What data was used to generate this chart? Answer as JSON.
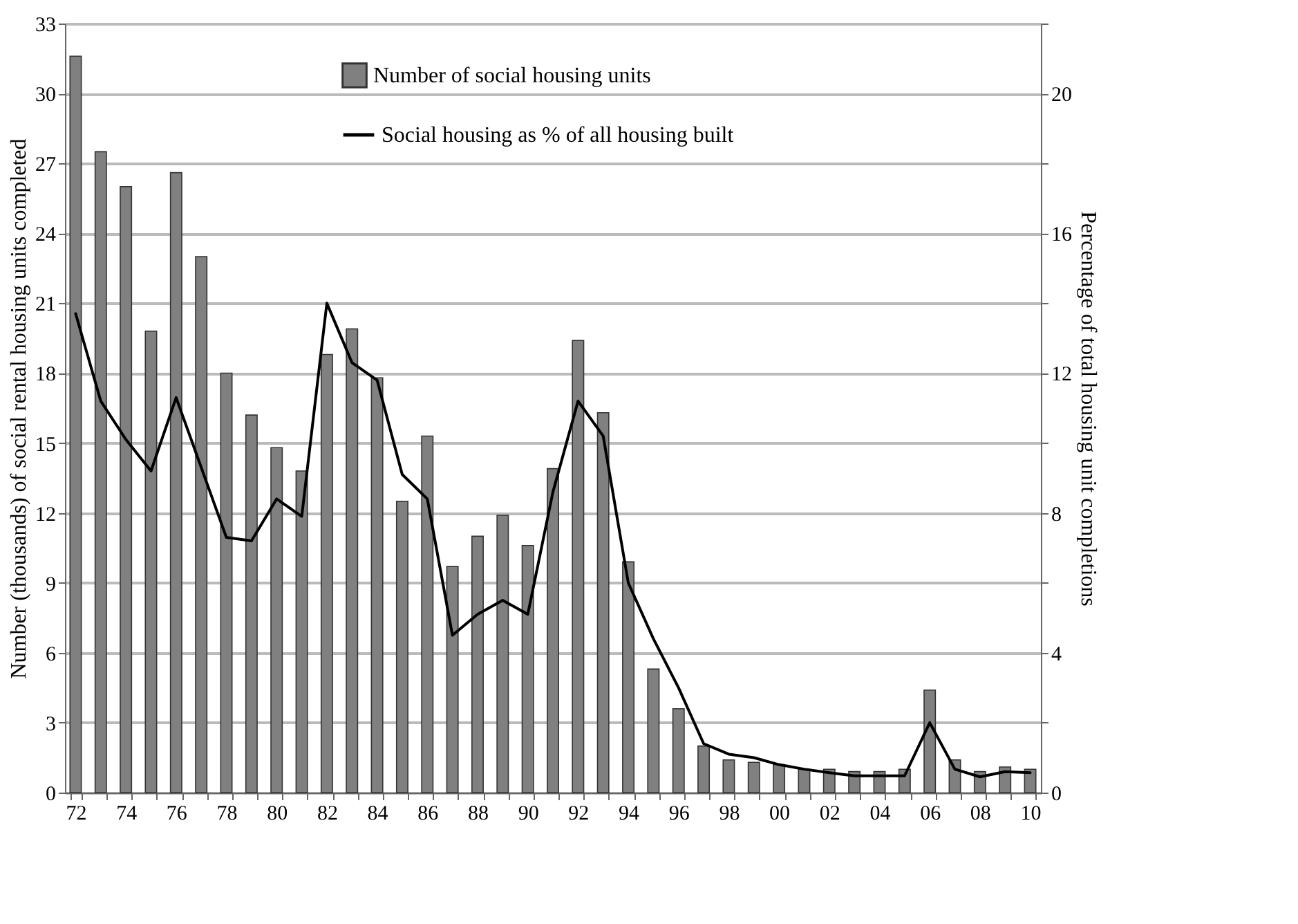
{
  "chart_data": {
    "type": "bar",
    "ylabel": "Number (thousands) of social rental housing units completed",
    "y2label": "Percentage of total housing unit completions",
    "categories": [
      "72",
      null,
      "74",
      null,
      "76",
      null,
      "78",
      null,
      "80",
      null,
      "82",
      null,
      "84",
      null,
      "86",
      null,
      "88",
      null,
      "90",
      null,
      "92",
      null,
      "94",
      null,
      "96",
      null,
      "98",
      null,
      "00",
      null,
      "02",
      null,
      "04",
      null,
      "06",
      null,
      "08",
      null,
      "10"
    ],
    "series": [
      {
        "name": "Number of social housing units",
        "color": "#808080",
        "values": [
          31.6,
          27.5,
          26.0,
          19.8,
          26.6,
          23.0,
          18.0,
          16.2,
          14.8,
          13.8,
          18.8,
          19.9,
          17.8,
          12.5,
          15.3,
          9.7,
          11.0,
          11.9,
          10.6,
          13.9,
          19.4,
          16.3,
          9.9,
          5.3,
          3.6,
          2.0,
          1.4,
          1.3,
          1.2,
          1.0,
          1.0,
          0.9,
          0.9,
          1.0,
          4.4,
          1.4,
          0.9,
          1.1,
          1.0
        ]
      },
      {
        "name": "Social housing as % of all housing built",
        "type": "line",
        "axis": "y2",
        "color": "#000000",
        "values": [
          13.7,
          11.2,
          10.1,
          9.2,
          11.3,
          9.3,
          7.3,
          7.2,
          8.4,
          7.9,
          14.0,
          12.3,
          11.8,
          9.1,
          8.4,
          4.5,
          5.1,
          5.5,
          5.1,
          8.6,
          11.2,
          10.2,
          6.0,
          4.4,
          3.0,
          1.4,
          1.1,
          1.0,
          0.8,
          0.67,
          0.57,
          0.48,
          0.48,
          0.48,
          2.0,
          0.67,
          0.45,
          0.6,
          0.57
        ]
      }
    ],
    "ylim": [
      0,
      33
    ],
    "yticks": [
      0,
      3,
      6,
      9,
      12,
      15,
      18,
      21,
      24,
      27,
      30,
      33
    ],
    "y2lim": [
      0,
      22
    ],
    "y2ticks": [
      0,
      {
        "value": 2,
        "label": null
      },
      4,
      {
        "value": 6,
        "label": null
      },
      8,
      {
        "value": 10,
        "label": null
      },
      12,
      {
        "value": 14,
        "label": null
      },
      16,
      {
        "value": 18,
        "label": null
      },
      20,
      {
        "value": 22,
        "label": null
      }
    ],
    "grid": "y",
    "legend": "top"
  }
}
